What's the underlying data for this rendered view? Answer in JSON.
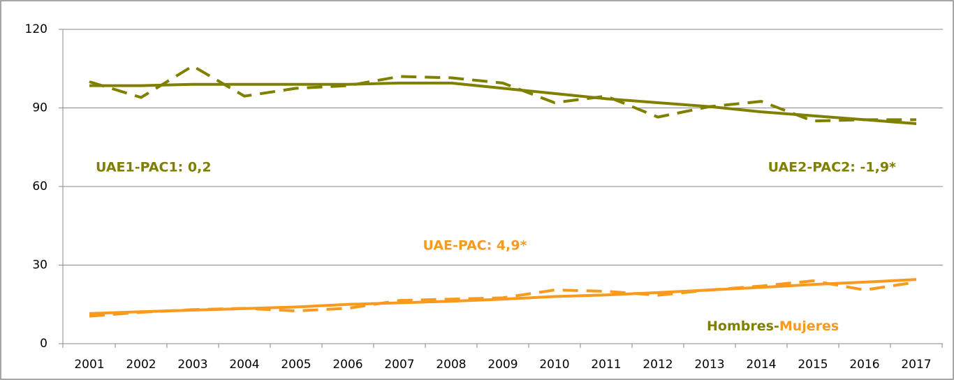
{
  "chart_data": {
    "type": "line",
    "categories": [
      "2001",
      "2002",
      "2003",
      "2004",
      "2005",
      "2006",
      "2007",
      "2008",
      "2009",
      "2010",
      "2011",
      "2012",
      "2013",
      "2014",
      "2015",
      "2016",
      "2017"
    ],
    "series": [
      {
        "color": "#7f8000",
        "dashed": true,
        "values": [
          100,
          94,
          106,
          94.5,
          97.5,
          98.5,
          102,
          101.5,
          99.5,
          92,
          94.5,
          86.5,
          90.5,
          92.5,
          85,
          85.5,
          85.5
        ]
      },
      {
        "color": "#7f8000",
        "dashed": false,
        "values": [
          98.5,
          98.5,
          99,
          99,
          99,
          99,
          99.5,
          99.5,
          97.5,
          95.5,
          93.5,
          92,
          90.5,
          88.5,
          87,
          85.5,
          84
        ]
      },
      {
        "color": "#f79a1e",
        "dashed": true,
        "values": [
          10.5,
          12,
          13,
          13.5,
          12.5,
          13.5,
          16.5,
          17,
          17.5,
          20.5,
          20,
          18.5,
          20.5,
          22,
          24,
          20.5,
          23.5
        ]
      },
      {
        "color": "#f79a1e",
        "dashed": false,
        "values": [
          11.5,
          12.2,
          12.8,
          13.4,
          14,
          15,
          15.6,
          16.2,
          17,
          18,
          18.6,
          19.5,
          20.5,
          21.5,
          22.6,
          23.5,
          24.5
        ]
      }
    ],
    "annotations": [
      {
        "text": "UAE1-PAC1: 0,2",
        "color": "#7f8000"
      },
      {
        "text": "UAE2-PAC2: -1,9*",
        "color": "#7f8000"
      },
      {
        "text": "UAE-PAC: 4,9*",
        "color": "#f79a1e"
      },
      {
        "text": "Hombres",
        "color": "#7f8000"
      },
      {
        "text": "-",
        "color": "#7f8000"
      },
      {
        "text": "Mujeres",
        "color": "#f79a1e"
      }
    ],
    "ylim": [
      0,
      120
    ],
    "yticks": [
      0,
      30,
      60,
      90,
      120
    ],
    "grid": true
  }
}
